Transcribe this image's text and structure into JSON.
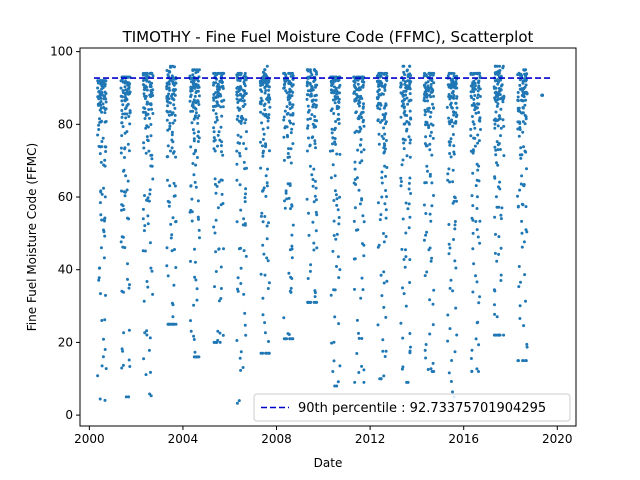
{
  "chart_data": {
    "type": "scatter",
    "title": "TIMOTHY - Fine Fuel Moisture Code (FFMC), Scatterplot",
    "xlabel": "Date",
    "ylabel": "Fine Fuel Moisture Code (FFMC)",
    "xlim": [
      1999.6,
      2020.8
    ],
    "ylim": [
      -3,
      101
    ],
    "x_ticks": [
      "2000",
      "2004",
      "2008",
      "2012",
      "2016",
      "2020"
    ],
    "x_tick_values": [
      2000,
      2004,
      2008,
      2012,
      2016,
      2020
    ],
    "y_ticks": [
      "0",
      "20",
      "40",
      "60",
      "80",
      "100"
    ],
    "y_tick_values": [
      0,
      20,
      40,
      60,
      80,
      100
    ],
    "grid": false,
    "legend_position": "lower-right",
    "point_color": "#1f77b4",
    "reference_line": {
      "label": "90th percentile : 92.73375701904295",
      "value": 92.73375701904295,
      "color": "#0000cc",
      "style": "dashed",
      "x_range": [
        2000.2,
        2019.7
      ]
    },
    "season_template": [
      3.5,
      12,
      15,
      20,
      25,
      32,
      36,
      40,
      45,
      52,
      56,
      60,
      63,
      66,
      70,
      72,
      74,
      76,
      78,
      80,
      81,
      82,
      83,
      84,
      85,
      86,
      86.5,
      87,
      87.5,
      88,
      88.5,
      89,
      89.3,
      89.6,
      90,
      90.3,
      90.6,
      91,
      91.3,
      91.6,
      92,
      92.3,
      92.6,
      93,
      93.3,
      93.6,
      94,
      94.3,
      94.6,
      95,
      62,
      75,
      83,
      88,
      90,
      55,
      85,
      91,
      48,
      79
    ],
    "seasons": [
      {
        "year": 2000,
        "start": 2000.35,
        "end": 2000.72,
        "min": 3.5,
        "max": 92
      },
      {
        "year": 2001,
        "start": 2001.35,
        "end": 2001.75,
        "min": 5,
        "max": 93
      },
      {
        "year": 2002,
        "start": 2002.3,
        "end": 2002.72,
        "min": 3,
        "max": 94
      },
      {
        "year": 2003,
        "start": 2003.3,
        "end": 2003.72,
        "min": 25,
        "max": 96
      },
      {
        "year": 2004,
        "start": 2004.3,
        "end": 2004.72,
        "min": 16,
        "max": 95
      },
      {
        "year": 2005,
        "start": 2005.3,
        "end": 2005.75,
        "min": 20,
        "max": 94
      },
      {
        "year": 2006,
        "start": 2006.3,
        "end": 2006.72,
        "min": 3,
        "max": 94
      },
      {
        "year": 2007,
        "start": 2007.3,
        "end": 2007.72,
        "min": 17,
        "max": 96
      },
      {
        "year": 2008,
        "start": 2008.3,
        "end": 2008.72,
        "min": 21,
        "max": 94
      },
      {
        "year": 2009,
        "start": 2009.3,
        "end": 2009.72,
        "min": 31,
        "max": 95
      },
      {
        "year": 2010,
        "start": 2010.3,
        "end": 2010.72,
        "min": 8,
        "max": 93
      },
      {
        "year": 2011,
        "start": 2011.3,
        "end": 2011.75,
        "min": 9,
        "max": 93
      },
      {
        "year": 2012,
        "start": 2012.3,
        "end": 2012.72,
        "min": 10,
        "max": 94
      },
      {
        "year": 2013,
        "start": 2013.3,
        "end": 2013.75,
        "min": 9,
        "max": 96
      },
      {
        "year": 2014,
        "start": 2014.3,
        "end": 2014.72,
        "min": 12,
        "max": 94
      },
      {
        "year": 2015,
        "start": 2015.3,
        "end": 2015.72,
        "min": 5,
        "max": 94
      },
      {
        "year": 2016,
        "start": 2016.3,
        "end": 2016.72,
        "min": 12,
        "max": 94
      },
      {
        "year": 2017,
        "start": 2017.3,
        "end": 2017.72,
        "min": 22,
        "max": 96
      },
      {
        "year": 2018,
        "start": 2018.3,
        "end": 2018.72,
        "min": 15,
        "max": 95
      },
      {
        "year": 2019,
        "start": 2019.33,
        "end": 2019.37,
        "min": 88,
        "max": 90
      }
    ]
  }
}
